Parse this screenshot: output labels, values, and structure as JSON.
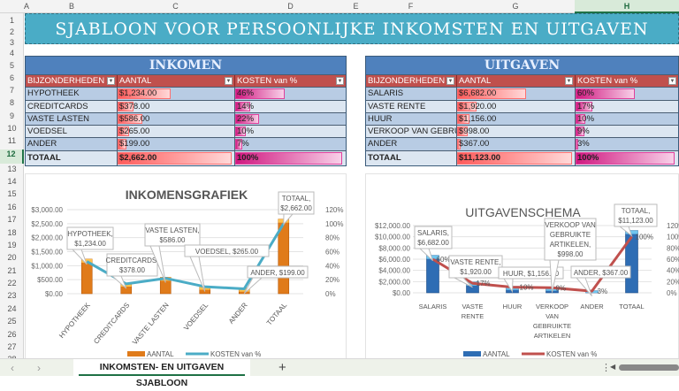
{
  "columns": [
    "A",
    "B",
    "C",
    "D",
    "E",
    "F",
    "G",
    "H"
  ],
  "rows": [
    "1",
    "2",
    "3",
    "4",
    "5",
    "6",
    "7",
    "8",
    "9",
    "10",
    "11",
    "12",
    "13",
    "14",
    "15",
    "16",
    "17",
    "18",
    "19",
    "20",
    "21",
    "22",
    "23",
    "24",
    "25",
    "26",
    "27",
    "28"
  ],
  "title": "SJABLOON VOOR PERSOONLIJKE INKOMSTEN EN UITGAVEN",
  "income": {
    "title": "INKOMEN",
    "headers": [
      "BIJZONDERHEDEN",
      "AANTAL",
      "KOSTEN van %"
    ],
    "rows": [
      {
        "name": "HYPOTHEEK",
        "amount": "$1,234.00",
        "pct": "46%",
        "amount_value": 1234,
        "pct_value": 46
      },
      {
        "name": "CREDITCARDS",
        "amount": "$378.00",
        "pct": "14%",
        "amount_value": 378,
        "pct_value": 14
      },
      {
        "name": "VASTE LASTEN",
        "amount": "$586.00",
        "pct": "22%",
        "amount_value": 586,
        "pct_value": 22
      },
      {
        "name": "VOEDSEL",
        "amount": "$265.00",
        "pct": "10%",
        "amount_value": 265,
        "pct_value": 10
      },
      {
        "name": "ANDER",
        "amount": "$199.00",
        "pct": "7%",
        "amount_value": 199,
        "pct_value": 7
      }
    ],
    "total": {
      "name": "TOTAAL",
      "amount": "$2,662.00",
      "pct": "100%",
      "amount_value": 2662,
      "pct_value": 100
    }
  },
  "expenses": {
    "title": "UITGAVEN",
    "headers": [
      "BIJZONDERHEDEN",
      "AANTAL",
      "KOSTEN van %"
    ],
    "rows": [
      {
        "name": "SALARIS",
        "amount": "$6,682.00",
        "pct": "60%",
        "amount_value": 6682,
        "pct_value": 60
      },
      {
        "name": "VASTE RENTE",
        "amount": "$1,920.00",
        "pct": "17%",
        "amount_value": 1920,
        "pct_value": 17
      },
      {
        "name": "HUUR",
        "amount": "$1,156.00",
        "pct": "10%",
        "amount_value": 1156,
        "pct_value": 10
      },
      {
        "name": "VERKOOP VAN GEBRUIKTE ARTIKELEN",
        "amount": "$998.00",
        "pct": "9%",
        "amount_value": 998,
        "pct_value": 9
      },
      {
        "name": "ANDER",
        "amount": "$367.00",
        "pct": "3%",
        "amount_value": 367,
        "pct_value": 3
      }
    ],
    "total": {
      "name": "TOTAAL",
      "amount": "$11,123.00",
      "pct": "100%",
      "amount_value": 11123,
      "pct_value": 100
    }
  },
  "chart_data": [
    {
      "type": "bar",
      "title": "INKOMENSGRAFIEK",
      "categories": [
        "HYPOTHEEK",
        "CREDITCARDS",
        "VASTE LASTEN",
        "VOEDSEL",
        "ANDER",
        "TOTAAL"
      ],
      "series": [
        {
          "name": "AANTAL",
          "kind": "bar",
          "values": [
            1234,
            378,
            586,
            265,
            199,
            2662
          ]
        },
        {
          "name": "KOSTEN van %",
          "kind": "line",
          "axis": "secondary",
          "values": [
            46,
            14,
            22,
            10,
            7,
            100
          ]
        }
      ],
      "data_labels": [
        "HYPOTHEEK, $1,234.00",
        "CREDITCARDS, $378.00",
        "VASTE LASTEN, $586.00",
        "VOEDSEL, $265.00",
        "ANDER, $199.00",
        "TOTAAL, $2,662.00"
      ],
      "pct_labels": [],
      "ylim": [
        0,
        3000
      ],
      "yticks": [
        "$0.00",
        "$500.00",
        "$1,000.00",
        "$1,500.00",
        "$2,000.00",
        "$2,500.00",
        "$3,000.00"
      ],
      "y2lim": [
        0,
        120
      ],
      "y2ticks": [
        "0%",
        "20%",
        "40%",
        "60%",
        "80%",
        "100%",
        "120%"
      ],
      "legend": "bottom",
      "colors": {
        "bar": "#e07b1a",
        "line": "#4bacc6"
      }
    },
    {
      "type": "bar",
      "title": "UITGAVENSCHEMA",
      "categories": [
        "SALARIS",
        "VASTE RENTE",
        "HUUR",
        "VERKOOP VAN GEBRUIKTE ARTIKELEN",
        "ANDER",
        "TOTAAL"
      ],
      "series": [
        {
          "name": "AANTAL",
          "kind": "bar",
          "values": [
            6682,
            1920,
            1156,
            998,
            367,
            11123
          ]
        },
        {
          "name": "KOSTEN van %",
          "kind": "line",
          "axis": "secondary",
          "values": [
            60,
            17,
            10,
            9,
            3,
            100
          ]
        }
      ],
      "data_labels": [
        "SALARIS, $6,682.00",
        "VASTE RENTE, $1,920.00",
        "HUUR, $1,156.00",
        "VERKOOP VAN GEBRUIKTE ARTIKELEN, $998.00",
        "ANDER, $367.00",
        "TOTAAL, $11,123.00"
      ],
      "pct_labels": [
        "60%",
        "17%",
        "10%",
        "9%",
        "3%",
        "100%"
      ],
      "ylim": [
        0,
        12000
      ],
      "yticks": [
        "$0.00",
        "$2,000.00",
        "$4,000.00",
        "$6,000.00",
        "$8,000.00",
        "$10,000.00",
        "$12,000.00"
      ],
      "y2lim": [
        0,
        120
      ],
      "y2ticks": [
        "0%",
        "20%",
        "40%",
        "60%",
        "80%",
        "100%",
        "120%"
      ],
      "legend": "bottom",
      "colors": {
        "bar": "#2e6db4",
        "line": "#c0504d"
      }
    }
  ],
  "sheet_tab": "INKOMSTEN- EN UITGAVEN SJABLOON",
  "tabbar": {
    "prev": "‹",
    "next": "›",
    "add": "+"
  }
}
